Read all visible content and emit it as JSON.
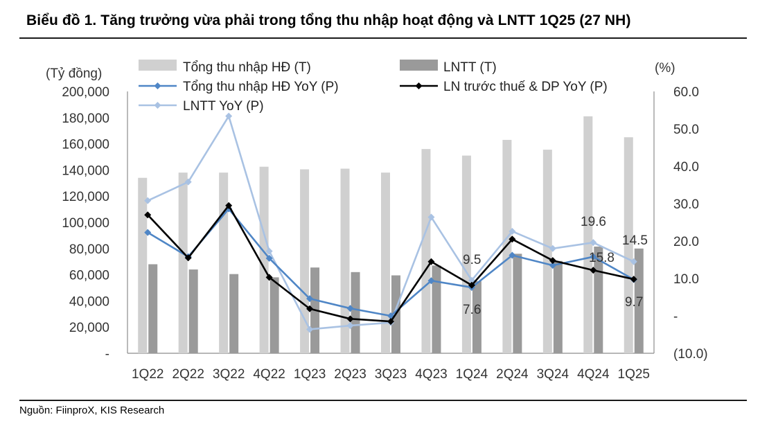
{
  "title": "Biểu đồ 1. Tăng trưởng vừa phải trong tổng thu nhập hoạt động và LNTT 1Q25 (27 NH)",
  "source": "Nguồn: FiinproX, KIS Research",
  "colors": {
    "bar_income": "#d0d0d0",
    "bar_lntt": "#9a9a9a",
    "line_income_yoy": "#4f86c6",
    "line_pbt_dp_yoy": "#000000",
    "line_lntt_yoy": "#a9c2e3"
  },
  "chart_data": {
    "type": "bar",
    "categories": [
      "1Q22",
      "2Q22",
      "3Q22",
      "4Q22",
      "1Q23",
      "2Q23",
      "3Q23",
      "4Q23",
      "1Q24",
      "2Q24",
      "3Q24",
      "4Q24",
      "1Q25"
    ],
    "left_axis": {
      "label": "(Tỷ đồng)",
      "ylim": [
        0,
        200000
      ],
      "ticks": [
        0,
        20000,
        40000,
        60000,
        80000,
        100000,
        120000,
        140000,
        160000,
        180000,
        200000
      ],
      "tick_labels": [
        "-",
        "20,000",
        "40,000",
        "60,000",
        "80,000",
        "100,000",
        "120,000",
        "140,000",
        "160,000",
        "180,000",
        "200,000"
      ]
    },
    "right_axis": {
      "label": "(%)",
      "ylim": [
        -10,
        60
      ],
      "ticks": [
        -10,
        0,
        10,
        20,
        30,
        40,
        50,
        60
      ],
      "tick_labels": [
        "(10.0)",
        "-",
        "10.0",
        "20.0",
        "30.0",
        "40.0",
        "50.0",
        "60.0"
      ]
    },
    "series": [
      {
        "name": "Tổng thu nhập HĐ (T)",
        "kind": "bar",
        "axis": "left",
        "values": [
          134000,
          138000,
          138000,
          142500,
          140500,
          141000,
          138000,
          156000,
          151000,
          163000,
          155500,
          181000,
          165000
        ]
      },
      {
        "name": "LNTT (T)",
        "kind": "bar",
        "axis": "left",
        "values": [
          68000,
          64000,
          60500,
          58000,
          65500,
          62000,
          59500,
          67000,
          55000,
          76000,
          70500,
          81500,
          80000
        ]
      },
      {
        "name": "Tổng thu nhập HĐ YoY (P)",
        "kind": "line",
        "axis": "right",
        "values": [
          22.3,
          15.8,
          28.6,
          15.4,
          4.6,
          2.0,
          0.0,
          9.4,
          7.6,
          16.2,
          13.5,
          15.8,
          9.7
        ]
      },
      {
        "name": "LN trước thuế & DP YoY (P)",
        "kind": "line",
        "axis": "right",
        "values": [
          27.0,
          15.5,
          29.5,
          10.3,
          1.9,
          -0.8,
          -1.5,
          14.5,
          8.2,
          20.5,
          14.8,
          12.2,
          9.8
        ]
      },
      {
        "name": "LNTT YoY (P)",
        "kind": "line",
        "axis": "right",
        "values": [
          30.8,
          35.8,
          53.4,
          17.3,
          -3.6,
          -2.6,
          -1.8,
          26.4,
          9.5,
          22.6,
          18.0,
          19.6,
          14.5
        ]
      }
    ],
    "annotations": [
      "19.6",
      "14.5",
      "9.5",
      "15.8",
      "7.6",
      "9.7"
    ],
    "grid": false,
    "legend": "top"
  }
}
